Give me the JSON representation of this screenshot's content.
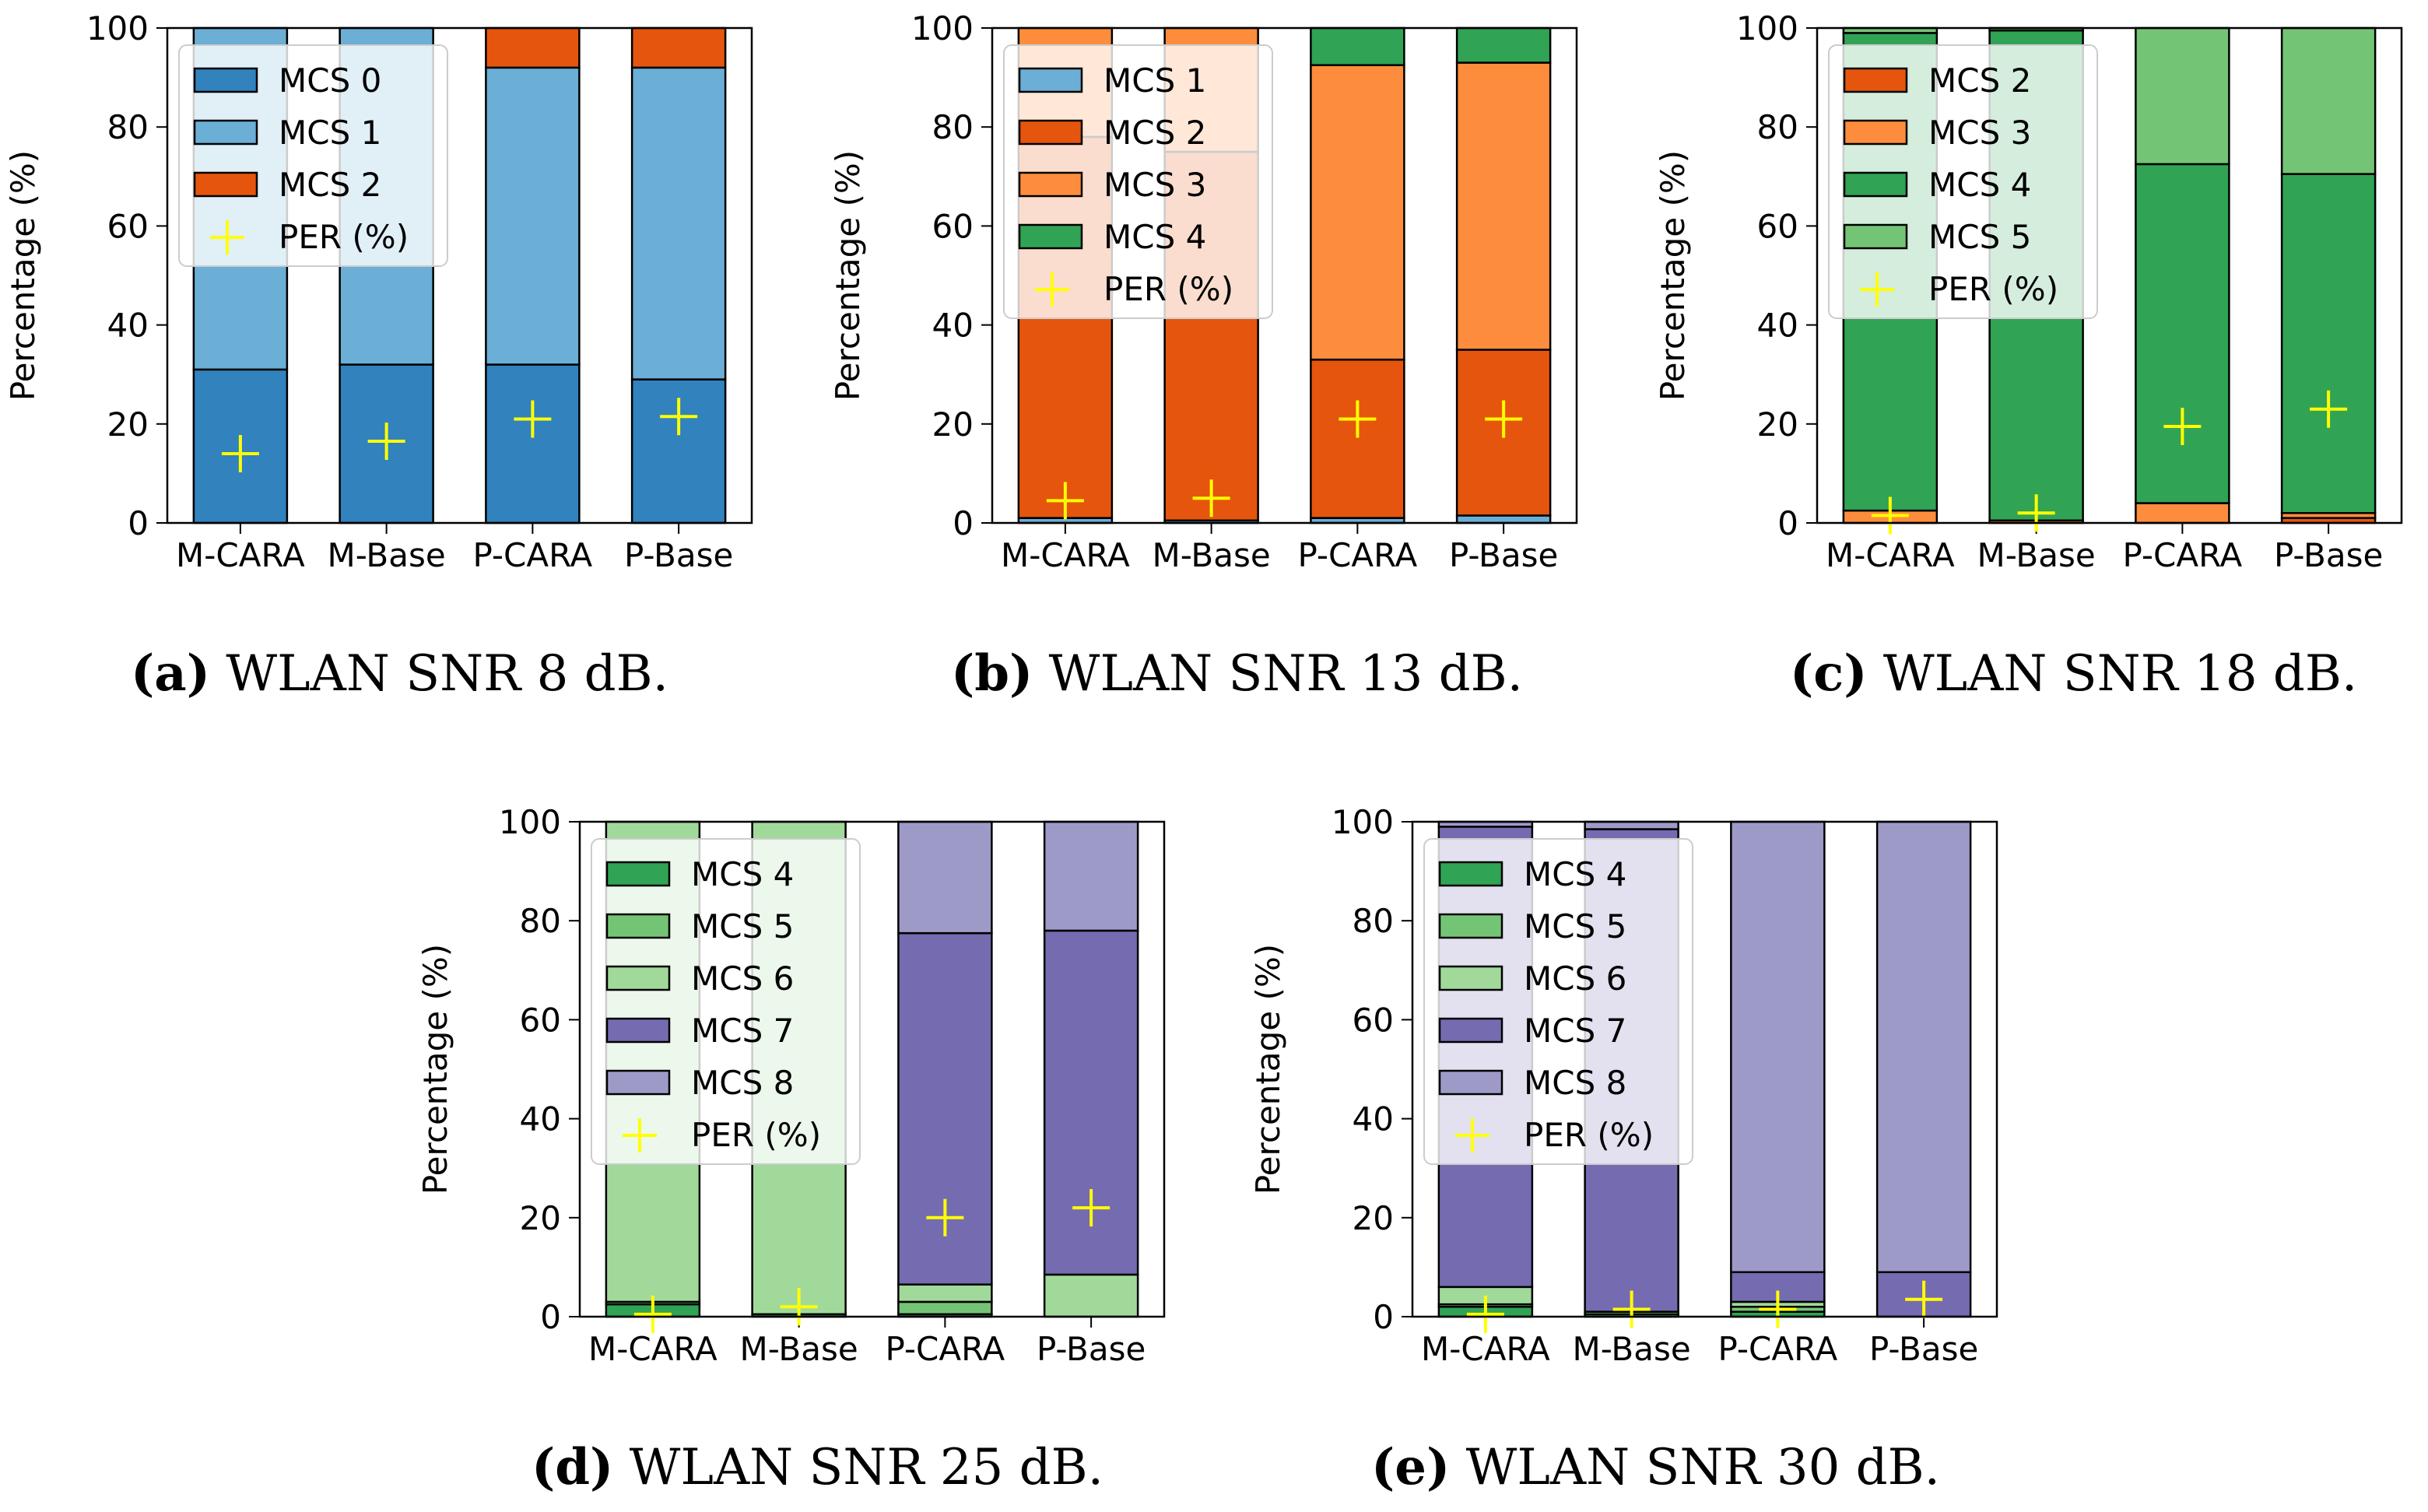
{
  "legend_labels": {
    "per": "PER (%)"
  },
  "mcs_colors": {
    "MCS 0": "#3182bd",
    "MCS 1": "#6baed6",
    "MCS 2": "#e6550d",
    "MCS 3": "#fd8d3c",
    "MCS 4": "#31a354",
    "MCS 5": "#74c476",
    "MCS 6": "#a1d99b",
    "MCS 7": "#756bb1",
    "MCS 8": "#9e9ac8",
    "per_marker": "#ffff00"
  },
  "chart_data": [
    {
      "id": "a",
      "type": "bar",
      "stacked": true,
      "caption_letter": "(a)",
      "caption_text": " WLAN SNR 8 dB.",
      "ylabel": "Percentage (%)",
      "ylim": [
        0,
        100
      ],
      "yticks": [
        "0",
        "20",
        "40",
        "60",
        "80",
        "100"
      ],
      "categories": [
        "M-CARA",
        "M-Base",
        "P-CARA",
        "P-Base"
      ],
      "legend_position": "top-left",
      "series": [
        {
          "name": "MCS 0",
          "values": [
            31,
            32,
            32,
            29
          ]
        },
        {
          "name": "MCS 1",
          "values": [
            69,
            68,
            60,
            63
          ]
        },
        {
          "name": "MCS 2",
          "values": [
            0,
            0,
            8,
            8
          ]
        }
      ],
      "per": [
        14,
        16.5,
        21,
        21.5
      ]
    },
    {
      "id": "b",
      "type": "bar",
      "stacked": true,
      "caption_letter": "(b)",
      "caption_text": " WLAN SNR 13 dB.",
      "ylabel": "Percentage (%)",
      "ylim": [
        0,
        100
      ],
      "yticks": [
        "0",
        "20",
        "40",
        "60",
        "80",
        "100"
      ],
      "categories": [
        "M-CARA",
        "M-Base",
        "P-CARA",
        "P-Base"
      ],
      "legend_position": "top-left",
      "series": [
        {
          "name": "MCS 1",
          "values": [
            1,
            0.5,
            1,
            1.5
          ]
        },
        {
          "name": "MCS 2",
          "values": [
            77,
            74.5,
            32,
            33.5
          ]
        },
        {
          "name": "MCS 3",
          "values": [
            22,
            25,
            59.5,
            58
          ]
        },
        {
          "name": "MCS 4",
          "values": [
            0,
            0,
            7.5,
            7
          ]
        }
      ],
      "per": [
        4.5,
        5,
        21,
        21
      ]
    },
    {
      "id": "c",
      "type": "bar",
      "stacked": true,
      "caption_letter": "(c)",
      "caption_text": " WLAN SNR 18 dB.",
      "ylabel": "Percentage (%)",
      "ylim": [
        0,
        100
      ],
      "yticks": [
        "0",
        "20",
        "40",
        "60",
        "80",
        "100"
      ],
      "categories": [
        "M-CARA",
        "M-Base",
        "P-CARA",
        "P-Base"
      ],
      "legend_position": "top-left",
      "series": [
        {
          "name": "MCS 2",
          "values": [
            0,
            0,
            0,
            1
          ]
        },
        {
          "name": "MCS 3",
          "values": [
            2.5,
            0.5,
            4,
            1
          ]
        },
        {
          "name": "MCS 4",
          "values": [
            96.5,
            99,
            68.5,
            68.5
          ]
        },
        {
          "name": "MCS 5",
          "values": [
            1,
            0.5,
            27.5,
            29.5
          ]
        }
      ],
      "per": [
        1.5,
        2,
        19.5,
        23
      ]
    },
    {
      "id": "d",
      "type": "bar",
      "stacked": true,
      "caption_letter": "(d)",
      "caption_text": " WLAN SNR 25 dB.",
      "ylabel": "Percentage (%)",
      "ylim": [
        0,
        100
      ],
      "yticks": [
        "0",
        "20",
        "40",
        "60",
        "80",
        "100"
      ],
      "categories": [
        "M-CARA",
        "M-Base",
        "P-CARA",
        "P-Base"
      ],
      "legend_position": "top-left",
      "series": [
        {
          "name": "MCS 4",
          "values": [
            2.5,
            0.5,
            0.5,
            0
          ]
        },
        {
          "name": "MCS 5",
          "values": [
            0.5,
            0,
            2.5,
            0
          ]
        },
        {
          "name": "MCS 6",
          "values": [
            97,
            99.5,
            3.5,
            8.5
          ]
        },
        {
          "name": "MCS 7",
          "values": [
            0,
            0,
            71,
            69.5
          ]
        },
        {
          "name": "MCS 8",
          "values": [
            0,
            0,
            22.5,
            22
          ]
        }
      ],
      "per": [
        0.5,
        2,
        20,
        22
      ]
    },
    {
      "id": "e",
      "type": "bar",
      "stacked": true,
      "caption_letter": "(e)",
      "caption_text": " WLAN SNR 30 dB.",
      "ylabel": "Percentage (%)",
      "ylim": [
        0,
        100
      ],
      "yticks": [
        "0",
        "20",
        "40",
        "60",
        "80",
        "100"
      ],
      "categories": [
        "M-CARA",
        "M-Base",
        "P-CARA",
        "P-Base"
      ],
      "legend_position": "top-left",
      "series": [
        {
          "name": "MCS 4",
          "values": [
            2,
            0.5,
            1,
            0
          ]
        },
        {
          "name": "MCS 5",
          "values": [
            0.5,
            0,
            1,
            0
          ]
        },
        {
          "name": "MCS 6",
          "values": [
            3.5,
            0.5,
            1,
            0
          ]
        },
        {
          "name": "MCS 7",
          "values": [
            93,
            97.5,
            6,
            9
          ]
        },
        {
          "name": "MCS 8",
          "values": [
            1,
            1.5,
            91,
            91
          ]
        }
      ],
      "per": [
        0.5,
        1.5,
        1.5,
        3.5
      ]
    }
  ]
}
